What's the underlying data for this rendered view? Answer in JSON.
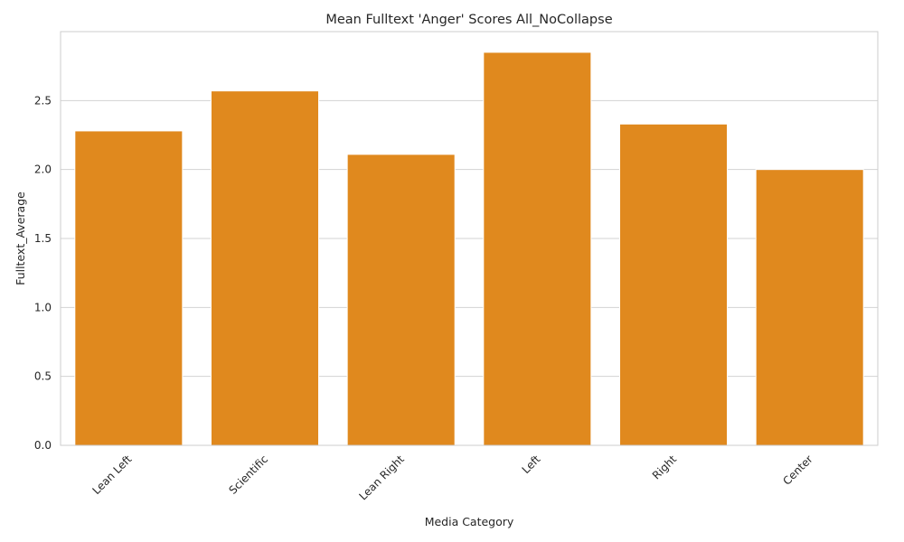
{
  "chart_data": {
    "type": "bar",
    "title": "Mean Fulltext 'Anger' Scores All_NoCollapse",
    "xlabel": "Media Category",
    "ylabel": "Fulltext_Average",
    "categories": [
      "Lean Left",
      "Scientific",
      "Lean Right",
      "Left",
      "Right",
      "Center"
    ],
    "values": [
      2.28,
      2.57,
      2.11,
      2.85,
      2.33,
      2.0
    ],
    "ylim": [
      0,
      3.0
    ],
    "yticks": [
      "0.0",
      "0.5",
      "1.0",
      "1.5",
      "2.0",
      "2.5"
    ],
    "ytick_values": [
      0,
      0.5,
      1.0,
      1.5,
      2.0,
      2.5
    ],
    "bar_color": "#e0891e",
    "grid": true,
    "legend": "none"
  }
}
